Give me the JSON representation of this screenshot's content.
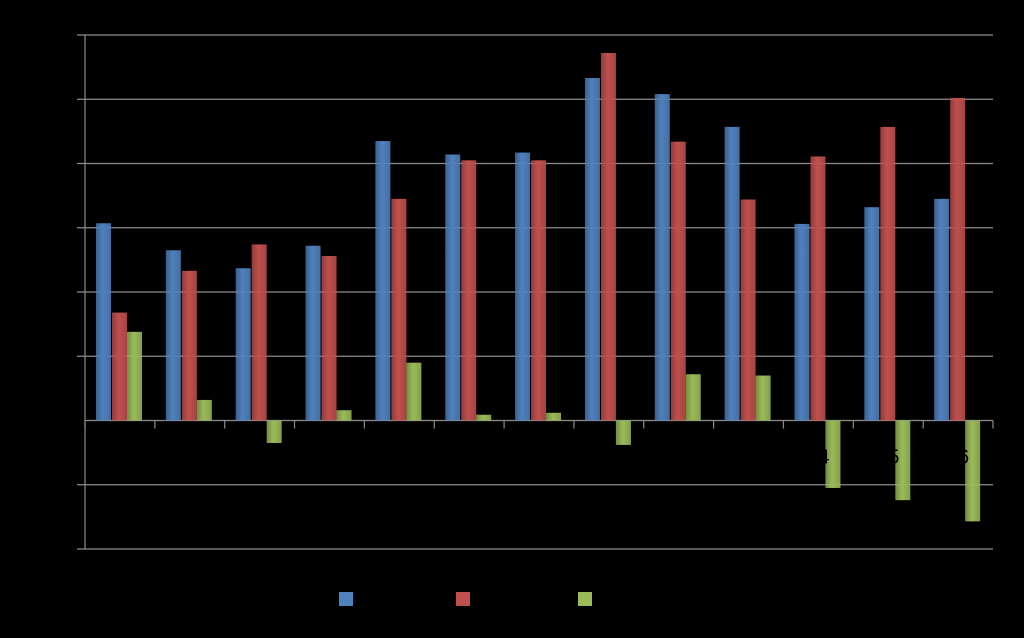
{
  "chart_data": {
    "type": "bar",
    "grid": true,
    "legend_position": "bottom",
    "ylim": [
      -2,
      6
    ],
    "categories": [
      "",
      "",
      "",
      "",
      "",
      "",
      "",
      "",
      "",
      "",
      "",
      "",
      ""
    ],
    "visible_tick_labels": [
      {
        "index": 10,
        "text": "14"
      },
      {
        "index": 11,
        "text": "15"
      },
      {
        "index": 12,
        "text": "16"
      }
    ],
    "series": [
      {
        "color": "#4F81BD",
        "values": [
          3.07,
          2.65,
          2.37,
          2.72,
          4.35,
          4.14,
          4.17,
          5.33,
          5.08,
          4.57,
          3.06,
          3.32,
          3.45
        ]
      },
      {
        "color": "#C0504D",
        "values": [
          1.68,
          2.33,
          2.74,
          2.56,
          3.45,
          4.05,
          4.05,
          5.72,
          4.34,
          3.44,
          4.11,
          4.57,
          5.02
        ]
      },
      {
        "color": "#9BBB59",
        "values": [
          1.38,
          0.32,
          -0.35,
          0.16,
          0.9,
          0.09,
          0.12,
          -0.38,
          0.72,
          0.7,
          -1.05,
          -1.24,
          -1.57
        ]
      }
    ]
  }
}
